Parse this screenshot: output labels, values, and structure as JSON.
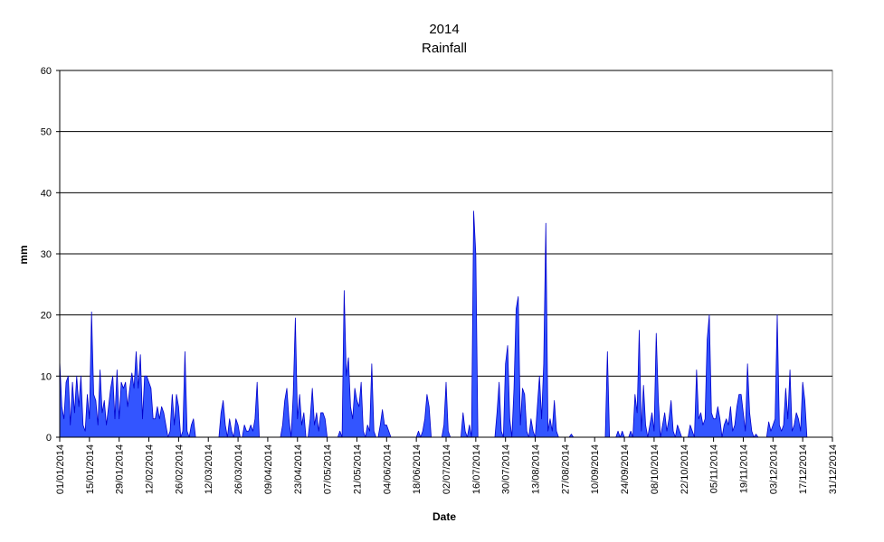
{
  "chart_data": {
    "type": "area",
    "title": "2014",
    "subtitle": "Rainfall",
    "xlabel": "Date",
    "ylabel": "mm",
    "ylim": [
      0,
      60
    ],
    "yticks": [
      "0",
      "10",
      "20",
      "30",
      "40",
      "50",
      "60"
    ],
    "xlim": [
      "01/01/2014",
      "31/12/2014"
    ],
    "xticks": [
      "01/01/2014",
      "15/01/2014",
      "29/01/2014",
      "12/02/2014",
      "26/02/2014",
      "12/03/2014",
      "26/03/2014",
      "09/04/2014",
      "23/04/2014",
      "07/05/2014",
      "21/05/2014",
      "04/06/2014",
      "18/06/2014",
      "02/07/2014",
      "16/07/2014",
      "30/07/2014",
      "13/08/2014",
      "27/08/2014",
      "10/09/2014",
      "24/09/2014",
      "08/10/2014",
      "22/10/2014",
      "05/11/2014",
      "19/11/2014",
      "03/12/2014",
      "17/12/2014",
      "31/12/2014"
    ],
    "grid": true,
    "legend": "none",
    "fill_color": "#3355ff",
    "line_color": "#0000cc",
    "series": [
      {
        "points": [
          [
            "01/01/2014",
            12.5
          ],
          [
            "02/01/2014",
            5
          ],
          [
            "03/01/2014",
            3
          ],
          [
            "04/01/2014",
            9
          ],
          [
            "05/01/2014",
            10
          ],
          [
            "06/01/2014",
            2
          ],
          [
            "07/01/2014",
            9
          ],
          [
            "08/01/2014",
            4
          ],
          [
            "09/01/2014",
            10
          ],
          [
            "10/01/2014",
            5
          ],
          [
            "11/01/2014",
            10
          ],
          [
            "12/01/2014",
            2
          ],
          [
            "13/01/2014",
            1
          ],
          [
            "14/01/2014",
            7
          ],
          [
            "15/01/2014",
            3
          ],
          [
            "16/01/2014",
            20.5
          ],
          [
            "17/01/2014",
            7
          ],
          [
            "18/01/2014",
            6
          ],
          [
            "19/01/2014",
            2
          ],
          [
            "20/01/2014",
            11
          ],
          [
            "21/01/2014",
            4
          ],
          [
            "22/01/2014",
            6
          ],
          [
            "23/01/2014",
            2
          ],
          [
            "24/01/2014",
            5
          ],
          [
            "25/01/2014",
            8
          ],
          [
            "26/01/2014",
            10
          ],
          [
            "27/01/2014",
            3
          ],
          [
            "28/01/2014",
            11
          ],
          [
            "29/01/2014",
            3
          ],
          [
            "30/01/2014",
            9
          ],
          [
            "31/01/2014",
            8
          ],
          [
            "01/02/2014",
            9
          ],
          [
            "02/02/2014",
            5
          ],
          [
            "03/02/2014",
            8
          ],
          [
            "04/02/2014",
            10.5
          ],
          [
            "05/02/2014",
            8
          ],
          [
            "06/02/2014",
            14
          ],
          [
            "07/02/2014",
            8
          ],
          [
            "08/02/2014",
            13.5
          ],
          [
            "09/02/2014",
            3
          ],
          [
            "10/02/2014",
            10
          ],
          [
            "11/02/2014",
            10
          ],
          [
            "12/02/2014",
            9
          ],
          [
            "13/02/2014",
            8
          ],
          [
            "14/02/2014",
            3
          ],
          [
            "15/02/2014",
            3
          ],
          [
            "16/02/2014",
            5
          ],
          [
            "17/02/2014",
            3
          ],
          [
            "18/02/2014",
            5
          ],
          [
            "19/02/2014",
            4
          ],
          [
            "20/02/2014",
            2
          ],
          [
            "21/02/2014",
            0
          ],
          [
            "22/02/2014",
            1
          ],
          [
            "23/02/2014",
            7
          ],
          [
            "24/02/2014",
            2
          ],
          [
            "25/02/2014",
            7
          ],
          [
            "26/02/2014",
            5
          ],
          [
            "27/02/2014",
            0
          ],
          [
            "28/02/2014",
            1
          ],
          [
            "01/03/2014",
            14
          ],
          [
            "02/03/2014",
            1
          ],
          [
            "03/03/2014",
            0
          ],
          [
            "04/03/2014",
            2
          ],
          [
            "05/03/2014",
            3
          ],
          [
            "06/03/2014",
            0
          ],
          [
            "17/03/2014",
            0
          ],
          [
            "18/03/2014",
            4
          ],
          [
            "19/03/2014",
            6
          ],
          [
            "20/03/2014",
            2
          ],
          [
            "21/03/2014",
            0
          ],
          [
            "22/03/2014",
            3
          ],
          [
            "23/03/2014",
            1
          ],
          [
            "24/03/2014",
            0
          ],
          [
            "25/03/2014",
            3
          ],
          [
            "26/03/2014",
            2
          ],
          [
            "27/03/2014",
            0
          ],
          [
            "28/03/2014",
            0
          ],
          [
            "29/03/2014",
            2
          ],
          [
            "30/03/2014",
            1
          ],
          [
            "31/03/2014",
            1
          ],
          [
            "01/04/2014",
            2
          ],
          [
            "02/04/2014",
            1
          ],
          [
            "03/04/2014",
            3
          ],
          [
            "04/04/2014",
            9
          ],
          [
            "05/04/2014",
            0
          ],
          [
            "15/04/2014",
            0
          ],
          [
            "16/04/2014",
            2
          ],
          [
            "17/04/2014",
            6
          ],
          [
            "18/04/2014",
            8
          ],
          [
            "19/04/2014",
            3
          ],
          [
            "20/04/2014",
            0
          ],
          [
            "21/04/2014",
            7
          ],
          [
            "22/04/2014",
            19.5
          ],
          [
            "23/04/2014",
            3
          ],
          [
            "24/04/2014",
            7
          ],
          [
            "25/04/2014",
            2
          ],
          [
            "26/04/2014",
            4
          ],
          [
            "27/04/2014",
            0
          ],
          [
            "28/04/2014",
            0
          ],
          [
            "29/04/2014",
            3
          ],
          [
            "30/04/2014",
            8
          ],
          [
            "01/05/2014",
            2
          ],
          [
            "02/05/2014",
            4
          ],
          [
            "03/05/2014",
            1
          ],
          [
            "04/05/2014",
            4
          ],
          [
            "05/05/2014",
            4
          ],
          [
            "06/05/2014",
            3
          ],
          [
            "07/05/2014",
            0
          ],
          [
            "12/05/2014",
            0
          ],
          [
            "13/05/2014",
            1
          ],
          [
            "14/05/2014",
            0
          ],
          [
            "15/05/2014",
            24
          ],
          [
            "16/05/2014",
            10
          ],
          [
            "17/05/2014",
            13
          ],
          [
            "18/05/2014",
            5
          ],
          [
            "19/05/2014",
            3
          ],
          [
            "20/05/2014",
            8
          ],
          [
            "21/05/2014",
            6
          ],
          [
            "22/05/2014",
            5
          ],
          [
            "23/05/2014",
            9
          ],
          [
            "24/05/2014",
            1
          ],
          [
            "25/05/2014",
            0
          ],
          [
            "26/05/2014",
            2
          ],
          [
            "27/05/2014",
            1
          ],
          [
            "28/05/2014",
            12
          ],
          [
            "29/05/2014",
            1
          ],
          [
            "30/05/2014",
            0
          ],
          [
            "31/05/2014",
            0
          ],
          [
            "01/06/2014",
            2
          ],
          [
            "02/06/2014",
            4.5
          ],
          [
            "03/06/2014",
            2
          ],
          [
            "04/06/2014",
            2
          ],
          [
            "05/06/2014",
            1
          ],
          [
            "06/06/2014",
            0
          ],
          [
            "18/06/2014",
            0
          ],
          [
            "19/06/2014",
            1
          ],
          [
            "20/06/2014",
            0
          ],
          [
            "21/06/2014",
            1
          ],
          [
            "22/06/2014",
            3
          ],
          [
            "23/06/2014",
            7
          ],
          [
            "24/06/2014",
            5
          ],
          [
            "25/06/2014",
            0
          ],
          [
            "30/06/2014",
            0
          ],
          [
            "01/07/2014",
            2
          ],
          [
            "02/07/2014",
            9
          ],
          [
            "03/07/2014",
            1
          ],
          [
            "04/07/2014",
            0
          ],
          [
            "09/07/2014",
            0
          ],
          [
            "10/07/2014",
            4
          ],
          [
            "11/07/2014",
            1
          ],
          [
            "12/07/2014",
            0
          ],
          [
            "13/07/2014",
            2
          ],
          [
            "14/07/2014",
            0
          ],
          [
            "15/07/2014",
            37
          ],
          [
            "16/07/2014",
            30
          ],
          [
            "17/07/2014",
            0
          ],
          [
            "25/07/2014",
            0
          ],
          [
            "26/07/2014",
            4
          ],
          [
            "27/07/2014",
            9
          ],
          [
            "28/07/2014",
            1
          ],
          [
            "29/07/2014",
            0
          ],
          [
            "30/07/2014",
            12
          ],
          [
            "31/07/2014",
            15
          ],
          [
            "01/08/2014",
            3
          ],
          [
            "02/08/2014",
            0
          ],
          [
            "03/08/2014",
            8
          ],
          [
            "04/08/2014",
            21
          ],
          [
            "05/08/2014",
            23
          ],
          [
            "06/08/2014",
            2
          ],
          [
            "07/08/2014",
            8
          ],
          [
            "08/08/2014",
            7
          ],
          [
            "09/08/2014",
            1
          ],
          [
            "10/08/2014",
            0
          ],
          [
            "11/08/2014",
            3
          ],
          [
            "12/08/2014",
            1
          ],
          [
            "13/08/2014",
            0
          ],
          [
            "14/08/2014",
            5
          ],
          [
            "15/08/2014",
            10
          ],
          [
            "16/08/2014",
            3
          ],
          [
            "17/08/2014",
            12
          ],
          [
            "18/08/2014",
            35
          ],
          [
            "19/08/2014",
            1
          ],
          [
            "20/08/2014",
            3
          ],
          [
            "21/08/2014",
            1
          ],
          [
            "22/08/2014",
            6
          ],
          [
            "23/08/2014",
            1
          ],
          [
            "24/08/2014",
            0
          ],
          [
            "29/08/2014",
            0
          ],
          [
            "30/08/2014",
            0.5
          ],
          [
            "31/08/2014",
            0
          ],
          [
            "15/09/2014",
            0
          ],
          [
            "16/09/2014",
            14
          ],
          [
            "17/09/2014",
            0
          ],
          [
            "20/09/2014",
            0
          ],
          [
            "21/09/2014",
            1
          ],
          [
            "22/09/2014",
            0
          ],
          [
            "23/09/2014",
            1
          ],
          [
            "24/09/2014",
            0
          ],
          [
            "26/09/2014",
            0
          ],
          [
            "27/09/2014",
            1
          ],
          [
            "28/09/2014",
            0
          ],
          [
            "29/09/2014",
            7
          ],
          [
            "30/09/2014",
            4
          ],
          [
            "01/10/2014",
            17.5
          ],
          [
            "02/10/2014",
            1
          ],
          [
            "03/10/2014",
            8.5
          ],
          [
            "04/10/2014",
            2
          ],
          [
            "05/10/2014",
            0
          ],
          [
            "06/10/2014",
            2
          ],
          [
            "07/10/2014",
            4
          ],
          [
            "08/10/2014",
            1
          ],
          [
            "09/10/2014",
            17
          ],
          [
            "10/10/2014",
            6
          ],
          [
            "11/10/2014",
            0
          ],
          [
            "12/10/2014",
            2
          ],
          [
            "13/10/2014",
            4
          ],
          [
            "14/10/2014",
            1
          ],
          [
            "15/10/2014",
            3
          ],
          [
            "16/10/2014",
            6
          ],
          [
            "17/10/2014",
            1
          ],
          [
            "18/10/2014",
            0
          ],
          [
            "19/10/2014",
            2
          ],
          [
            "20/10/2014",
            1
          ],
          [
            "21/10/2014",
            0
          ],
          [
            "24/10/2014",
            0
          ],
          [
            "25/10/2014",
            2
          ],
          [
            "26/10/2014",
            1
          ],
          [
            "27/10/2014",
            0
          ],
          [
            "28/10/2014",
            11
          ],
          [
            "29/10/2014",
            3
          ],
          [
            "30/10/2014",
            4
          ],
          [
            "31/10/2014",
            2
          ],
          [
            "01/11/2014",
            3
          ],
          [
            "02/11/2014",
            16
          ],
          [
            "03/11/2014",
            20
          ],
          [
            "04/11/2014",
            4
          ],
          [
            "05/11/2014",
            3
          ],
          [
            "06/11/2014",
            3
          ],
          [
            "07/11/2014",
            5
          ],
          [
            "08/11/2014",
            3
          ],
          [
            "09/11/2014",
            0
          ],
          [
            "10/11/2014",
            2
          ],
          [
            "11/11/2014",
            3
          ],
          [
            "12/11/2014",
            2
          ],
          [
            "13/11/2014",
            5
          ],
          [
            "14/11/2014",
            1
          ],
          [
            "15/11/2014",
            2
          ],
          [
            "16/11/2014",
            5
          ],
          [
            "17/11/2014",
            7
          ],
          [
            "18/11/2014",
            7
          ],
          [
            "19/11/2014",
            4
          ],
          [
            "20/11/2014",
            1
          ],
          [
            "21/11/2014",
            12
          ],
          [
            "22/11/2014",
            4
          ],
          [
            "23/11/2014",
            1
          ],
          [
            "24/11/2014",
            0
          ],
          [
            "25/11/2014",
            0.5
          ],
          [
            "26/11/2014",
            0
          ],
          [
            "30/11/2014",
            0
          ],
          [
            "01/12/2014",
            2.5
          ],
          [
            "02/12/2014",
            1
          ],
          [
            "03/12/2014",
            2
          ],
          [
            "04/12/2014",
            3
          ],
          [
            "05/12/2014",
            20
          ],
          [
            "06/12/2014",
            2
          ],
          [
            "07/12/2014",
            1
          ],
          [
            "08/12/2014",
            2
          ],
          [
            "09/12/2014",
            8
          ],
          [
            "10/12/2014",
            3
          ],
          [
            "11/12/2014",
            11
          ],
          [
            "12/12/2014",
            1
          ],
          [
            "13/12/2014",
            2
          ],
          [
            "14/12/2014",
            4
          ],
          [
            "15/12/2014",
            3
          ],
          [
            "16/12/2014",
            1
          ],
          [
            "17/12/2014",
            9
          ],
          [
            "18/12/2014",
            6
          ],
          [
            "19/12/2014",
            0
          ]
        ]
      }
    ]
  }
}
